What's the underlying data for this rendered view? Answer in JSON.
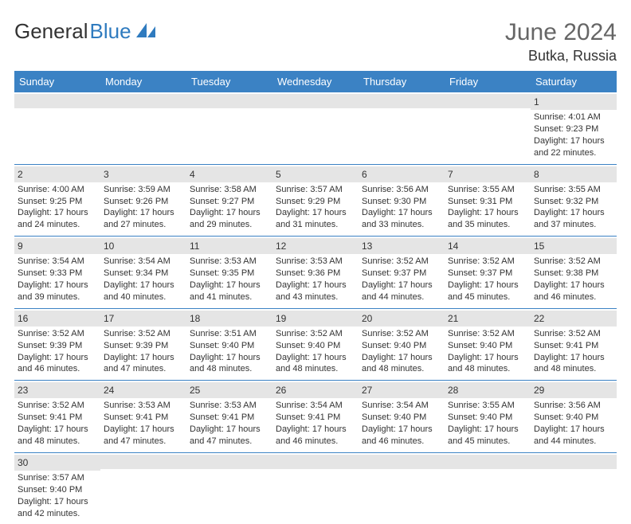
{
  "logo": {
    "text1": "General",
    "text2": "Blue"
  },
  "title": "June 2024",
  "location": "Butka, Russia",
  "colors": {
    "header_bg": "#3b82c4",
    "header_fg": "#ffffff",
    "daynum_bg": "#e5e5e5",
    "row_border": "#3b82c4",
    "logo_accent": "#2f7bbf"
  },
  "weekdays": [
    "Sunday",
    "Monday",
    "Tuesday",
    "Wednesday",
    "Thursday",
    "Friday",
    "Saturday"
  ],
  "weeks": [
    [
      {
        "n": "",
        "lines": []
      },
      {
        "n": "",
        "lines": []
      },
      {
        "n": "",
        "lines": []
      },
      {
        "n": "",
        "lines": []
      },
      {
        "n": "",
        "lines": []
      },
      {
        "n": "",
        "lines": []
      },
      {
        "n": "1",
        "lines": [
          "Sunrise: 4:01 AM",
          "Sunset: 9:23 PM",
          "Daylight: 17 hours and 22 minutes."
        ]
      }
    ],
    [
      {
        "n": "2",
        "lines": [
          "Sunrise: 4:00 AM",
          "Sunset: 9:25 PM",
          "Daylight: 17 hours and 24 minutes."
        ]
      },
      {
        "n": "3",
        "lines": [
          "Sunrise: 3:59 AM",
          "Sunset: 9:26 PM",
          "Daylight: 17 hours and 27 minutes."
        ]
      },
      {
        "n": "4",
        "lines": [
          "Sunrise: 3:58 AM",
          "Sunset: 9:27 PM",
          "Daylight: 17 hours and 29 minutes."
        ]
      },
      {
        "n": "5",
        "lines": [
          "Sunrise: 3:57 AM",
          "Sunset: 9:29 PM",
          "Daylight: 17 hours and 31 minutes."
        ]
      },
      {
        "n": "6",
        "lines": [
          "Sunrise: 3:56 AM",
          "Sunset: 9:30 PM",
          "Daylight: 17 hours and 33 minutes."
        ]
      },
      {
        "n": "7",
        "lines": [
          "Sunrise: 3:55 AM",
          "Sunset: 9:31 PM",
          "Daylight: 17 hours and 35 minutes."
        ]
      },
      {
        "n": "8",
        "lines": [
          "Sunrise: 3:55 AM",
          "Sunset: 9:32 PM",
          "Daylight: 17 hours and 37 minutes."
        ]
      }
    ],
    [
      {
        "n": "9",
        "lines": [
          "Sunrise: 3:54 AM",
          "Sunset: 9:33 PM",
          "Daylight: 17 hours and 39 minutes."
        ]
      },
      {
        "n": "10",
        "lines": [
          "Sunrise: 3:54 AM",
          "Sunset: 9:34 PM",
          "Daylight: 17 hours and 40 minutes."
        ]
      },
      {
        "n": "11",
        "lines": [
          "Sunrise: 3:53 AM",
          "Sunset: 9:35 PM",
          "Daylight: 17 hours and 41 minutes."
        ]
      },
      {
        "n": "12",
        "lines": [
          "Sunrise: 3:53 AM",
          "Sunset: 9:36 PM",
          "Daylight: 17 hours and 43 minutes."
        ]
      },
      {
        "n": "13",
        "lines": [
          "Sunrise: 3:52 AM",
          "Sunset: 9:37 PM",
          "Daylight: 17 hours and 44 minutes."
        ]
      },
      {
        "n": "14",
        "lines": [
          "Sunrise: 3:52 AM",
          "Sunset: 9:37 PM",
          "Daylight: 17 hours and 45 minutes."
        ]
      },
      {
        "n": "15",
        "lines": [
          "Sunrise: 3:52 AM",
          "Sunset: 9:38 PM",
          "Daylight: 17 hours and 46 minutes."
        ]
      }
    ],
    [
      {
        "n": "16",
        "lines": [
          "Sunrise: 3:52 AM",
          "Sunset: 9:39 PM",
          "Daylight: 17 hours and 46 minutes."
        ]
      },
      {
        "n": "17",
        "lines": [
          "Sunrise: 3:52 AM",
          "Sunset: 9:39 PM",
          "Daylight: 17 hours and 47 minutes."
        ]
      },
      {
        "n": "18",
        "lines": [
          "Sunrise: 3:51 AM",
          "Sunset: 9:40 PM",
          "Daylight: 17 hours and 48 minutes."
        ]
      },
      {
        "n": "19",
        "lines": [
          "Sunrise: 3:52 AM",
          "Sunset: 9:40 PM",
          "Daylight: 17 hours and 48 minutes."
        ]
      },
      {
        "n": "20",
        "lines": [
          "Sunrise: 3:52 AM",
          "Sunset: 9:40 PM",
          "Daylight: 17 hours and 48 minutes."
        ]
      },
      {
        "n": "21",
        "lines": [
          "Sunrise: 3:52 AM",
          "Sunset: 9:40 PM",
          "Daylight: 17 hours and 48 minutes."
        ]
      },
      {
        "n": "22",
        "lines": [
          "Sunrise: 3:52 AM",
          "Sunset: 9:41 PM",
          "Daylight: 17 hours and 48 minutes."
        ]
      }
    ],
    [
      {
        "n": "23",
        "lines": [
          "Sunrise: 3:52 AM",
          "Sunset: 9:41 PM",
          "Daylight: 17 hours and 48 minutes."
        ]
      },
      {
        "n": "24",
        "lines": [
          "Sunrise: 3:53 AM",
          "Sunset: 9:41 PM",
          "Daylight: 17 hours and 47 minutes."
        ]
      },
      {
        "n": "25",
        "lines": [
          "Sunrise: 3:53 AM",
          "Sunset: 9:41 PM",
          "Daylight: 17 hours and 47 minutes."
        ]
      },
      {
        "n": "26",
        "lines": [
          "Sunrise: 3:54 AM",
          "Sunset: 9:41 PM",
          "Daylight: 17 hours and 46 minutes."
        ]
      },
      {
        "n": "27",
        "lines": [
          "Sunrise: 3:54 AM",
          "Sunset: 9:40 PM",
          "Daylight: 17 hours and 46 minutes."
        ]
      },
      {
        "n": "28",
        "lines": [
          "Sunrise: 3:55 AM",
          "Sunset: 9:40 PM",
          "Daylight: 17 hours and 45 minutes."
        ]
      },
      {
        "n": "29",
        "lines": [
          "Sunrise: 3:56 AM",
          "Sunset: 9:40 PM",
          "Daylight: 17 hours and 44 minutes."
        ]
      }
    ],
    [
      {
        "n": "30",
        "lines": [
          "Sunrise: 3:57 AM",
          "Sunset: 9:40 PM",
          "Daylight: 17 hours and 42 minutes."
        ]
      },
      {
        "n": "",
        "lines": []
      },
      {
        "n": "",
        "lines": []
      },
      {
        "n": "",
        "lines": []
      },
      {
        "n": "",
        "lines": []
      },
      {
        "n": "",
        "lines": []
      },
      {
        "n": "",
        "lines": []
      }
    ]
  ]
}
